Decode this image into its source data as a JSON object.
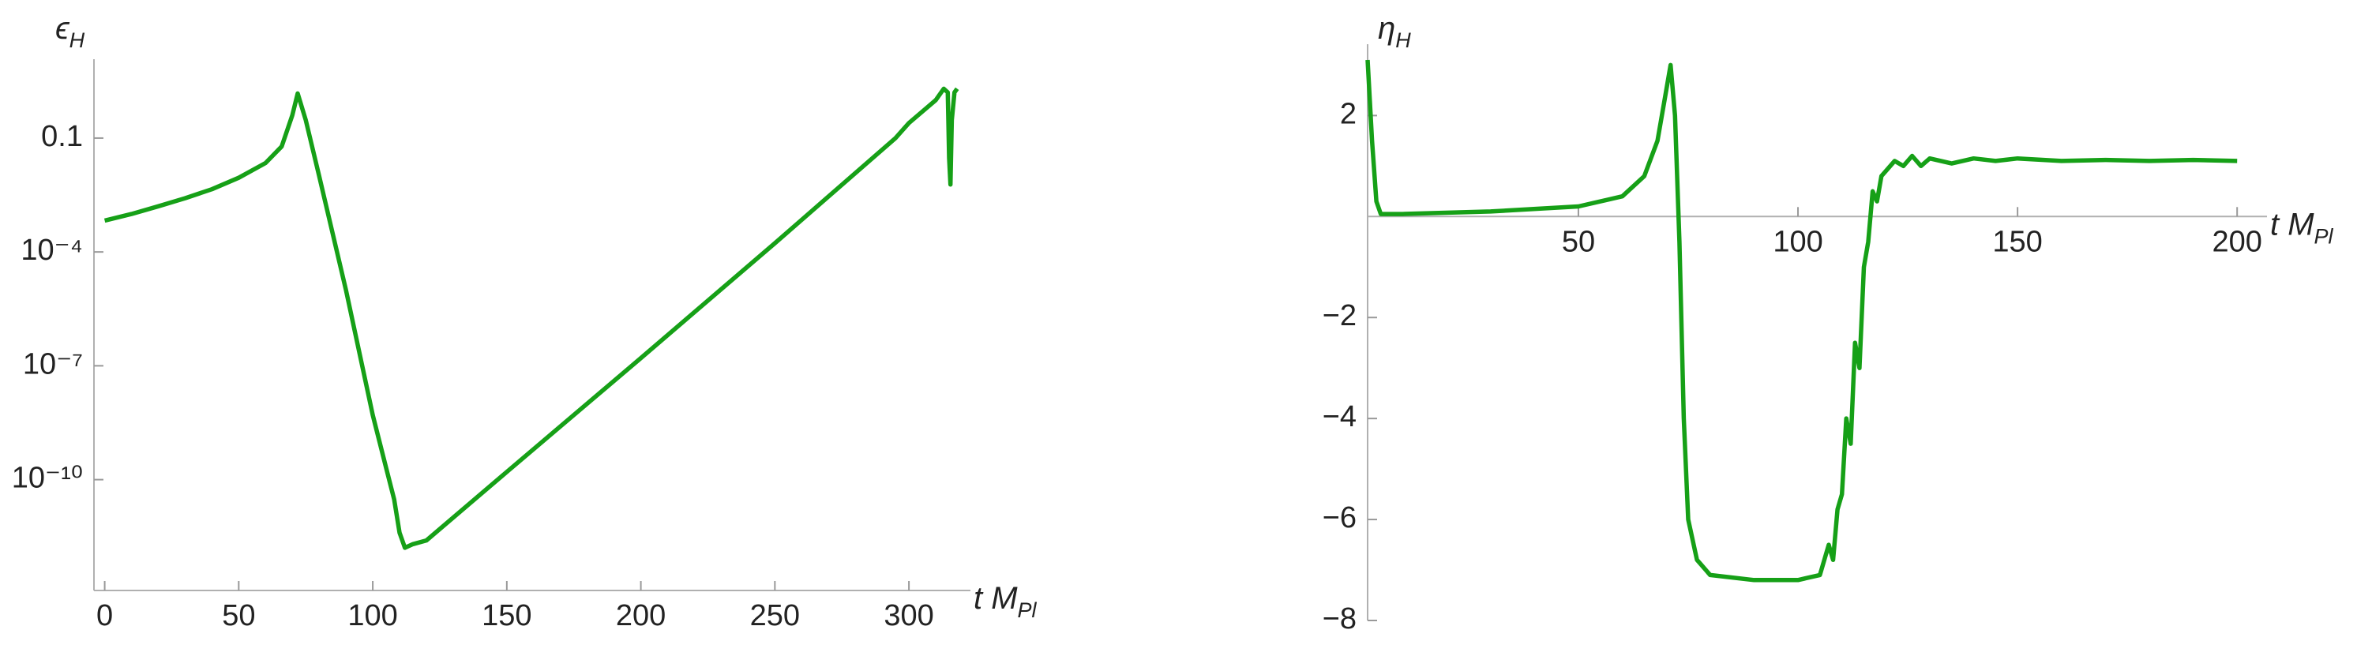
{
  "chart_data": [
    {
      "type": "line",
      "yscale": "log",
      "ylabel": {
        "text": "ϵ",
        "sub": "H"
      },
      "xlabel": {
        "text": "t M",
        "sub": "Pl"
      },
      "xlim": [
        -4,
        320
      ],
      "ylim": [
        1.2e-13,
        4.6
      ],
      "xticks": [
        0,
        50,
        100,
        150,
        200,
        250,
        300
      ],
      "yticks": [
        0.1,
        {
          "value": 0.0001,
          "label": "10⁻⁴"
        },
        {
          "value": 1e-07,
          "label": "10⁻⁷"
        },
        {
          "value": 1e-10,
          "label": "10⁻¹⁰"
        }
      ],
      "x": [
        0,
        10,
        20,
        30,
        40,
        50,
        60,
        66,
        70,
        72,
        75,
        80,
        90,
        100,
        105,
        108,
        110,
        112,
        115,
        120,
        150,
        200,
        250,
        295,
        300,
        305,
        310,
        313,
        314.5,
        315,
        315.5,
        316,
        317,
        318
      ],
      "series": [
        {
          "name": "ϵH",
          "color": "#16a017",
          "values": [
            0.00067,
            0.001,
            0.0016,
            0.0026,
            0.0045,
            0.009,
            0.022,
            0.06,
            0.4,
            1.5,
            0.3,
            0.01,
            1e-05,
            5e-09,
            2e-10,
            3e-11,
            4e-12,
            1.6e-12,
            2e-12,
            2.5e-12,
            1.6e-10,
            1.6e-07,
            0.00017,
            0.1,
            0.25,
            0.5,
            1.0,
            2.0,
            1.6,
            0.03,
            0.006,
            0.3,
            1.6,
            2.0
          ]
        }
      ]
    },
    {
      "type": "line",
      "yscale": "linear",
      "ylabel": {
        "text": "η",
        "sub": "H"
      },
      "xlabel": {
        "text": "t M",
        "sub": "Pl"
      },
      "xlim": [
        2,
        205
      ],
      "ylim": [
        -8,
        3.1
      ],
      "xticks": [
        50,
        100,
        150,
        200
      ],
      "yticks": [
        2,
        {
          "value": -2,
          "label": "−2"
        },
        {
          "value": -4,
          "label": "−4"
        },
        {
          "value": -6,
          "label": "−6"
        },
        {
          "value": -8,
          "label": "−8"
        }
      ],
      "x": [
        2,
        3,
        4,
        5,
        10,
        30,
        50,
        60,
        65,
        68,
        70,
        71,
        72,
        73,
        74,
        75,
        77,
        80,
        90,
        100,
        105,
        107,
        108,
        109,
        110,
        111,
        112,
        113,
        114,
        115,
        116,
        117,
        118,
        119,
        120,
        122,
        124,
        126,
        128,
        130,
        135,
        140,
        145,
        150,
        160,
        170,
        180,
        190,
        200
      ],
      "series": [
        {
          "name": "ηH",
          "color": "#16a017",
          "values": [
            3.1,
            1.5,
            0.3,
            0.05,
            0.05,
            0.1,
            0.2,
            0.4,
            0.8,
            1.5,
            2.5,
            3.0,
            2.0,
            -0.5,
            -4,
            -6,
            -6.8,
            -7.1,
            -7.2,
            -7.2,
            -7.1,
            -6.5,
            -6.8,
            -5.8,
            -5.5,
            -4,
            -4.5,
            -2.5,
            -3,
            -1,
            -0.5,
            0.5,
            0.3,
            0.8,
            0.9,
            1.1,
            1.0,
            1.2,
            1.0,
            1.15,
            1.05,
            1.15,
            1.1,
            1.15,
            1.1,
            1.12,
            1.1,
            1.12,
            1.1
          ]
        }
      ]
    }
  ]
}
